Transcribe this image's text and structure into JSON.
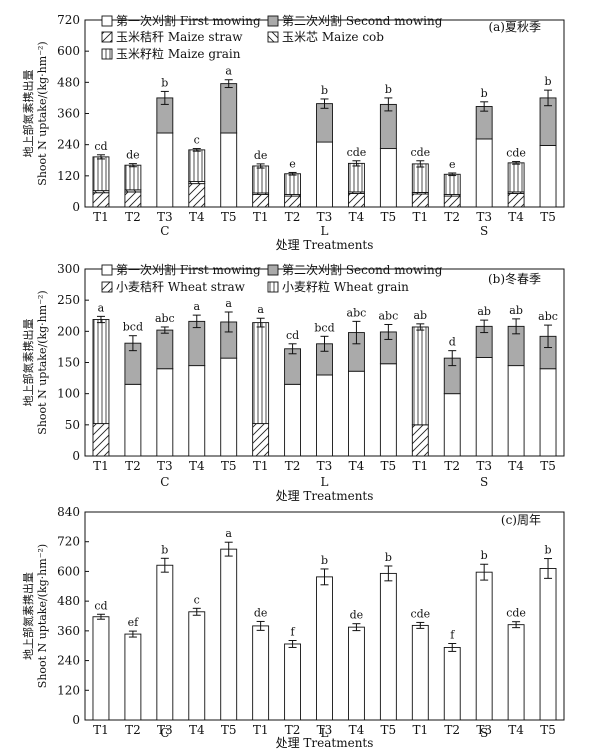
{
  "chart_data": [
    {
      "type": "bar",
      "panel_label": "(a)夏秋季",
      "ylabel_cn": "地上部氮素携出量",
      "ylabel_en": "Shoot N uptake/(kg·hm⁻²)",
      "xlabel": "处理 Treatments",
      "ylim": [
        0,
        720
      ],
      "yticks": [
        0,
        120,
        240,
        360,
        480,
        600,
        720
      ],
      "categories": [
        "T1",
        "T2",
        "T3",
        "T4",
        "T5",
        "T1",
        "T2",
        "T3",
        "T4",
        "T5",
        "T1",
        "T2",
        "T3",
        "T4",
        "T5"
      ],
      "groups": [
        "C",
        "L",
        "S"
      ],
      "legend": [
        {
          "label": "第一次刈割 First mowing",
          "key": "first"
        },
        {
          "label": "第二次刈割 Second mowing",
          "key": "second"
        },
        {
          "label": "玉米秸秆 Maize straw",
          "key": "straw"
        },
        {
          "label": "玉米芯 Maize cob",
          "key": "cob"
        },
        {
          "label": "玉米籽粒 Maize grain",
          "key": "grain"
        }
      ],
      "series": [
        {
          "name": "玉米秸秆 Maize straw",
          "key": "straw",
          "values": [
            55,
            58,
            0,
            90,
            0,
            48,
            42,
            0,
            52,
            0,
            50,
            42,
            0,
            52,
            0
          ]
        },
        {
          "name": "玉米芯 Maize cob",
          "key": "cob",
          "values": [
            8,
            8,
            0,
            8,
            0,
            6,
            6,
            0,
            6,
            0,
            6,
            6,
            0,
            6,
            0
          ]
        },
        {
          "name": "玉米籽粒 Maize grain",
          "key": "grain",
          "values": [
            130,
            95,
            0,
            122,
            0,
            104,
            80,
            0,
            110,
            0,
            110,
            78,
            0,
            112,
            0
          ]
        },
        {
          "name": "第一次刈割 First mowing",
          "key": "first",
          "values": [
            0,
            0,
            285,
            0,
            285,
            0,
            0,
            250,
            0,
            225,
            0,
            0,
            262,
            0,
            237
          ]
        },
        {
          "name": "第二次刈割 Second mowing",
          "key": "second",
          "values": [
            0,
            0,
            135,
            0,
            190,
            0,
            0,
            148,
            0,
            170,
            0,
            0,
            125,
            0,
            183
          ]
        }
      ],
      "totals": [
        193,
        161,
        420,
        220,
        475,
        158,
        128,
        398,
        168,
        395,
        166,
        126,
        387,
        170,
        420
      ],
      "errors": [
        8,
        6,
        25,
        5,
        15,
        8,
        5,
        18,
        10,
        25,
        12,
        5,
        18,
        5,
        30
      ],
      "letters": [
        "cd",
        "de",
        "b",
        "c",
        "a",
        "de",
        "e",
        "b",
        "cde",
        "b",
        "cde",
        "e",
        "b",
        "cde",
        "b"
      ]
    },
    {
      "type": "bar",
      "panel_label": "(b)冬春季",
      "ylabel_cn": "地上部氮素携出量",
      "ylabel_en": "Shoot N uptake/(kg·hm⁻²)",
      "xlabel": "处理 Treatments",
      "ylim": [
        0,
        300
      ],
      "yticks": [
        0,
        50,
        100,
        150,
        200,
        250,
        300
      ],
      "categories": [
        "T1",
        "T2",
        "T3",
        "T4",
        "T5",
        "T1",
        "T2",
        "T3",
        "T4",
        "T5",
        "T1",
        "T2",
        "T3",
        "T4",
        "T5"
      ],
      "groups": [
        "C",
        "L",
        "S"
      ],
      "legend": [
        {
          "label": "第一次刈割 First mowing",
          "key": "first"
        },
        {
          "label": "第二次刈割 Second mowing",
          "key": "second"
        },
        {
          "label": "小麦秸秆 Wheat straw",
          "key": "straw"
        },
        {
          "label": "小麦籽粒 Wheat grain",
          "key": "grain"
        }
      ],
      "series": [
        {
          "name": "小麦秸秆 Wheat straw",
          "key": "straw",
          "values": [
            52,
            0,
            0,
            0,
            0,
            52,
            0,
            0,
            0,
            0,
            50,
            0,
            0,
            0,
            0
          ]
        },
        {
          "name": "小麦籽粒 Wheat grain",
          "key": "grain",
          "values": [
            167,
            0,
            0,
            0,
            0,
            162,
            0,
            0,
            0,
            0,
            157,
            0,
            0,
            0,
            0
          ]
        },
        {
          "name": "第一次刈割 First mowing",
          "key": "first",
          "values": [
            0,
            115,
            140,
            145,
            157,
            0,
            115,
            130,
            136,
            148,
            0,
            100,
            158,
            145,
            140
          ]
        },
        {
          "name": "第二次刈割 Second mowing",
          "key": "second",
          "values": [
            0,
            66,
            62,
            71,
            58,
            0,
            57,
            50,
            62,
            51,
            0,
            57,
            50,
            63,
            52
          ]
        }
      ],
      "totals": [
        219,
        181,
        202,
        216,
        215,
        214,
        172,
        180,
        198,
        199,
        207,
        157,
        208,
        208,
        192
      ],
      "errors": [
        5,
        12,
        5,
        10,
        16,
        7,
        8,
        12,
        18,
        12,
        5,
        12,
        10,
        12,
        18
      ],
      "letters": [
        "a",
        "bcd",
        "abc",
        "a",
        "a",
        "a",
        "cd",
        "bcd",
        "abc",
        "abc",
        "ab",
        "d",
        "ab",
        "ab",
        "abc"
      ]
    },
    {
      "type": "bar",
      "panel_label": "(c)周年",
      "ylabel_cn": "地上部氮素携出量",
      "ylabel_en": "Shoot N uptake/(kg·hm⁻²)",
      "xlabel": "处理 Treatments",
      "ylim": [
        0,
        840
      ],
      "yticks": [
        0,
        120,
        240,
        360,
        480,
        600,
        720,
        840
      ],
      "categories": [
        "T1",
        "T2",
        "T3",
        "T4",
        "T5",
        "T1",
        "T2",
        "T3",
        "T4",
        "T5",
        "T1",
        "T2",
        "T3",
        "T4",
        "T5"
      ],
      "groups": [
        "C",
        "L",
        "S"
      ],
      "values": [
        417,
        347,
        625,
        437,
        690,
        380,
        307,
        578,
        375,
        592,
        382,
        293,
        597,
        385,
        612
      ],
      "errors": [
        10,
        12,
        28,
        14,
        28,
        18,
        14,
        32,
        14,
        30,
        12,
        16,
        32,
        12,
        40
      ],
      "letters": [
        "cd",
        "ef",
        "b",
        "c",
        "a",
        "de",
        "f",
        "b",
        "de",
        "b",
        "cde",
        "f",
        "b",
        "cde",
        "b"
      ]
    }
  ]
}
